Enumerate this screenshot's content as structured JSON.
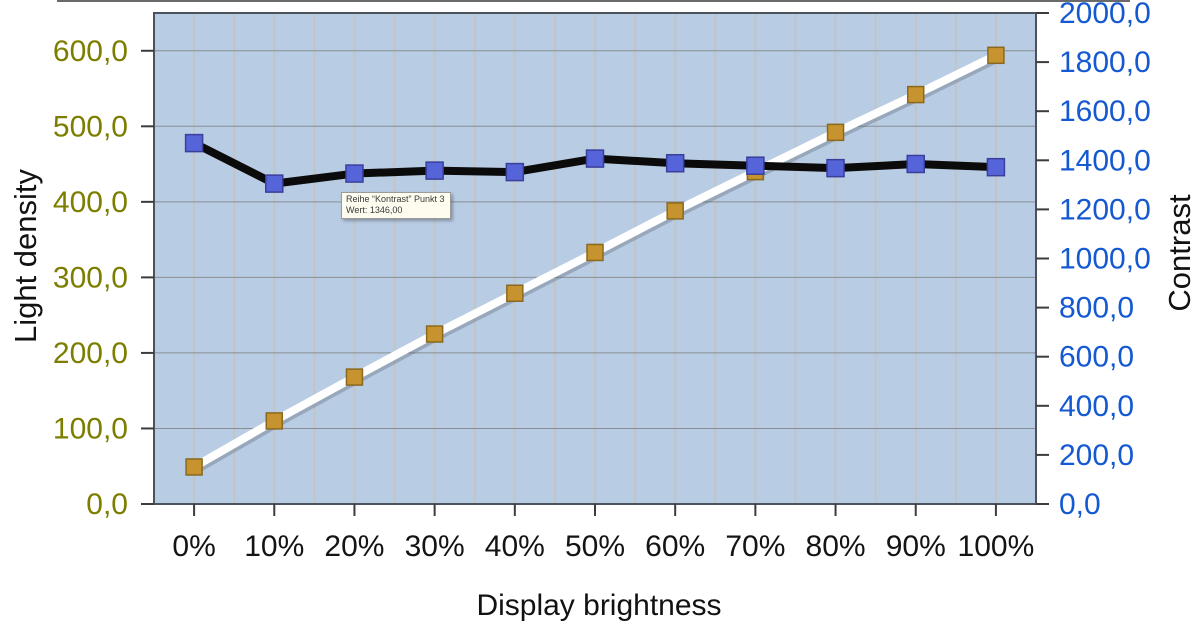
{
  "chart_data": {
    "type": "line",
    "categories": [
      "0%",
      "10%",
      "20%",
      "30%",
      "40%",
      "50%",
      "60%",
      "70%",
      "80%",
      "90%",
      "100%"
    ],
    "series": [
      {
        "name": "Light density",
        "axis": "left",
        "line_color": "#ffffff",
        "marker_fill": "#c6932e",
        "marker_stroke": "#8a691f",
        "values": [
          49,
          110,
          168,
          225,
          279,
          333,
          388,
          440,
          492,
          542,
          594
        ]
      },
      {
        "name": "Kontrast",
        "axis": "right",
        "line_color": "#0b0b0b",
        "marker_fill": "#5664da",
        "marker_stroke": "#3a3f9b",
        "values": [
          1470,
          1305,
          1346,
          1358,
          1352,
          1407,
          1388,
          1378,
          1368,
          1385,
          1372
        ]
      }
    ],
    "left_axis": {
      "title": "Light density",
      "min": 0,
      "max": 650,
      "tick_values": [
        0,
        100,
        200,
        300,
        400,
        500,
        600
      ],
      "tick_labels": [
        "0,0",
        "100,0",
        "200,0",
        "300,0",
        "400,0",
        "500,0",
        "600,0"
      ],
      "label_color": "#7d7d00"
    },
    "right_axis": {
      "title": "Contrast",
      "min": 0,
      "max": 2000,
      "tick_values": [
        0,
        200,
        400,
        600,
        800,
        1000,
        1200,
        1400,
        1600,
        1800,
        2000
      ],
      "tick_labels": [
        "0,0",
        "200,0",
        "400,0",
        "600,0",
        "800,0",
        "1000,0",
        "1200,0",
        "1400,0",
        "1600,0",
        "1800,0",
        "2000,0"
      ],
      "label_color": "#1459d2"
    },
    "x_axis": {
      "title": "Display brightness",
      "label_color": "#141414"
    },
    "plot": {
      "bg": "#b8cce4",
      "border_color": "#4c525b",
      "v_grid_color": "#c3c4c6",
      "h_grid_color": "#8a8e92",
      "tick_color": "#3c3c3c"
    },
    "grid": "on",
    "legend": "none"
  },
  "tooltip": {
    "line1": "Reihe “Kontrast” Punkt 3",
    "line2": "Wert: 1346,00"
  }
}
